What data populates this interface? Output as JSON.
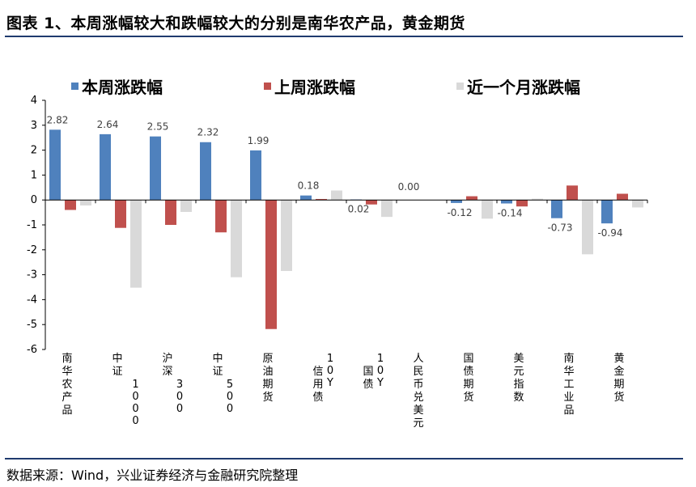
{
  "header": {
    "title": "图表 1、本周涨幅较大和跌幅较大的分别是南华农产品，黄金期货"
  },
  "footer": {
    "source": "数据来源：Wind，兴业证券经济与金融研究院整理"
  },
  "chart_data": {
    "type": "bar",
    "title": "",
    "xlabel": "",
    "ylabel": "",
    "ylim": [
      -6,
      4
    ],
    "yticks": [
      4,
      3,
      2,
      1,
      0,
      -1,
      -2,
      -3,
      -4,
      -5,
      -6
    ],
    "grid": false,
    "legend_position": "top",
    "categories": [
      "南华农产品",
      "中证1000",
      "沪深300",
      "中证500",
      "原油期货",
      "10Y信用债",
      "10Y国债",
      "人民币兑美元",
      "国债期货",
      "美元指数",
      "南华工业品",
      "黄金期货"
    ],
    "series": [
      {
        "name": "本周涨跌幅",
        "color": "#4f81bd",
        "values": [
          2.82,
          2.64,
          2.55,
          2.32,
          1.99,
          0.18,
          0.02,
          0.0,
          -0.12,
          -0.14,
          -0.73,
          -0.94
        ]
      },
      {
        "name": "上周涨跌幅",
        "color": "#c0504d",
        "values": [
          -0.4,
          -1.12,
          -1.0,
          -1.3,
          -5.18,
          0.04,
          -0.18,
          0.0,
          0.15,
          -0.26,
          0.58,
          0.25
        ]
      },
      {
        "name": "近一个月涨跌幅",
        "color": "#d9d9d9",
        "values": [
          -0.22,
          -3.52,
          -0.48,
          -3.1,
          -2.85,
          0.38,
          -0.68,
          0.0,
          -0.75,
          0.05,
          -2.18,
          -0.3
        ]
      }
    ],
    "data_labels": [
      "2.82",
      "2.64",
      "2.55",
      "2.32",
      "1.99",
      "0.18",
      "0.02",
      "0.00",
      "-0.12",
      "-0.14",
      "-0.73",
      "-0.94"
    ]
  }
}
